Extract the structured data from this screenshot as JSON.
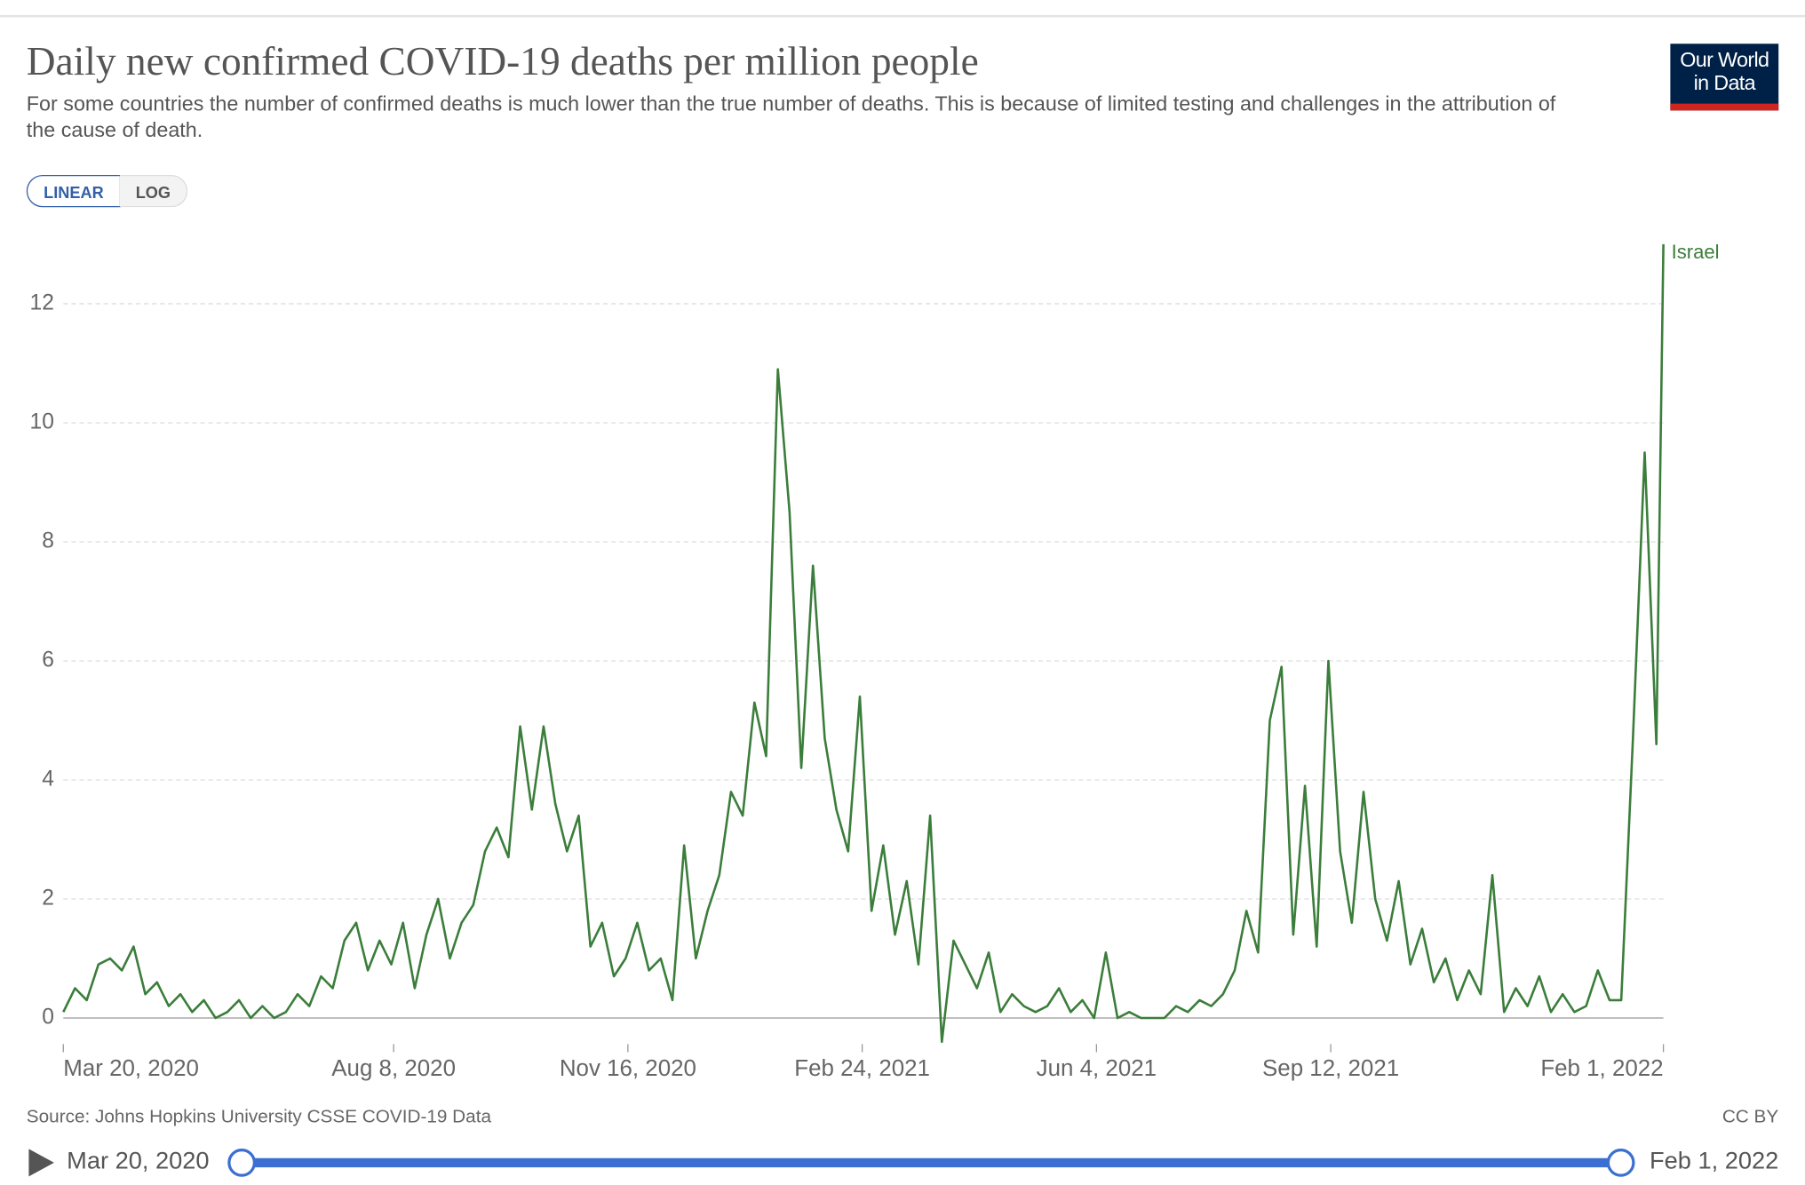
{
  "chart_data": {
    "type": "line",
    "title": "Daily new confirmed COVID-19 deaths per million people",
    "subtitle": "For some countries the number of confirmed deaths is much lower than the true number of deaths. This is because of limited testing and challenges in the attribution of the cause of death.",
    "x": [
      "2020-03-20",
      "2020-03-25",
      "2020-03-30",
      "2020-04-04",
      "2020-04-09",
      "2020-04-14",
      "2020-04-19",
      "2020-04-24",
      "2020-04-29",
      "2020-05-04",
      "2020-05-09",
      "2020-05-14",
      "2020-05-19",
      "2020-05-24",
      "2020-05-29",
      "2020-06-03",
      "2020-06-08",
      "2020-06-13",
      "2020-06-18",
      "2020-06-23",
      "2020-06-28",
      "2020-07-03",
      "2020-07-08",
      "2020-07-13",
      "2020-07-18",
      "2020-07-23",
      "2020-07-28",
      "2020-08-02",
      "2020-08-07",
      "2020-08-12",
      "2020-08-17",
      "2020-08-22",
      "2020-08-27",
      "2020-09-01",
      "2020-09-06",
      "2020-09-11",
      "2020-09-16",
      "2020-09-21",
      "2020-09-26",
      "2020-10-01",
      "2020-10-06",
      "2020-10-11",
      "2020-10-16",
      "2020-10-21",
      "2020-10-26",
      "2020-10-31",
      "2020-11-05",
      "2020-11-10",
      "2020-11-15",
      "2020-11-20",
      "2020-11-25",
      "2020-11-30",
      "2020-12-05",
      "2020-12-10",
      "2020-12-15",
      "2020-12-20",
      "2020-12-25",
      "2020-12-30",
      "2021-01-04",
      "2021-01-09",
      "2021-01-14",
      "2021-01-19",
      "2021-01-24",
      "2021-01-29",
      "2021-02-03",
      "2021-02-08",
      "2021-02-13",
      "2021-02-18",
      "2021-02-23",
      "2021-02-28",
      "2021-03-05",
      "2021-03-10",
      "2021-03-15",
      "2021-03-20",
      "2021-03-25",
      "2021-03-30",
      "2021-04-04",
      "2021-04-09",
      "2021-04-14",
      "2021-04-19",
      "2021-04-24",
      "2021-04-29",
      "2021-05-04",
      "2021-05-09",
      "2021-05-14",
      "2021-05-19",
      "2021-05-24",
      "2021-05-29",
      "2021-06-03",
      "2021-06-08",
      "2021-06-13",
      "2021-06-18",
      "2021-06-23",
      "2021-06-28",
      "2021-07-03",
      "2021-07-08",
      "2021-07-13",
      "2021-07-18",
      "2021-07-23",
      "2021-07-28",
      "2021-08-02",
      "2021-08-07",
      "2021-08-12",
      "2021-08-17",
      "2021-08-22",
      "2021-08-27",
      "2021-09-01",
      "2021-09-06",
      "2021-09-11",
      "2021-09-16",
      "2021-09-21",
      "2021-09-26",
      "2021-10-01",
      "2021-10-06",
      "2021-10-11",
      "2021-10-16",
      "2021-10-21",
      "2021-10-26",
      "2021-10-31",
      "2021-11-05",
      "2021-11-10",
      "2021-11-15",
      "2021-11-20",
      "2021-11-25",
      "2021-11-30",
      "2021-12-05",
      "2021-12-10",
      "2021-12-15",
      "2021-12-20",
      "2021-12-25",
      "2021-12-30",
      "2022-01-04",
      "2022-01-09",
      "2022-01-14",
      "2022-01-19",
      "2022-01-24",
      "2022-01-29",
      "2022-02-01"
    ],
    "series": [
      {
        "name": "Israel",
        "color": "#3b7d3b",
        "values": [
          0.1,
          0.5,
          0.3,
          0.9,
          1.0,
          0.8,
          1.2,
          0.4,
          0.6,
          0.2,
          0.4,
          0.1,
          0.3,
          0.0,
          0.1,
          0.3,
          0.0,
          0.2,
          0.0,
          0.1,
          0.4,
          0.2,
          0.7,
          0.5,
          1.3,
          1.6,
          0.8,
          1.3,
          0.9,
          1.6,
          0.5,
          1.4,
          2.0,
          1.0,
          1.6,
          1.9,
          2.8,
          3.2,
          2.7,
          4.9,
          3.5,
          4.9,
          3.6,
          2.8,
          3.4,
          1.2,
          1.6,
          0.7,
          1.0,
          1.6,
          0.8,
          1.0,
          0.3,
          2.9,
          1.0,
          1.8,
          2.4,
          3.8,
          3.4,
          5.3,
          4.4,
          10.9,
          8.5,
          4.2,
          7.6,
          4.7,
          3.5,
          2.8,
          5.4,
          1.8,
          2.9,
          1.4,
          2.3,
          0.9,
          3.4,
          -0.4,
          1.3,
          0.9,
          0.5,
          1.1,
          0.1,
          0.4,
          0.2,
          0.1,
          0.2,
          0.5,
          0.1,
          0.3,
          0.0,
          1.1,
          0.0,
          0.1,
          0.0,
          0.0,
          0.0,
          0.2,
          0.1,
          0.3,
          0.2,
          0.4,
          0.8,
          1.8,
          1.1,
          5.0,
          5.9,
          1.4,
          3.9,
          1.2,
          6.0,
          2.8,
          1.6,
          3.8,
          2.0,
          1.3,
          2.3,
          0.9,
          1.5,
          0.6,
          1.0,
          0.3,
          0.8,
          0.4,
          2.4,
          0.1,
          0.5,
          0.2,
          0.7,
          0.1,
          0.4,
          0.1,
          0.2,
          0.8,
          0.3,
          0.3,
          4.7,
          9.5,
          4.6,
          13.0
        ]
      }
    ],
    "xlim": [
      "2020-03-20",
      "2022-02-01"
    ],
    "ylim": [
      -0.4,
      13.1
    ],
    "xticks": [
      {
        "value": "2020-03-20",
        "label": "Mar 20, 2020"
      },
      {
        "value": "2020-08-08",
        "label": "Aug 8, 2020"
      },
      {
        "value": "2020-11-16",
        "label": "Nov 16, 2020"
      },
      {
        "value": "2021-02-24",
        "label": "Feb 24, 2021"
      },
      {
        "value": "2021-06-04",
        "label": "Jun 4, 2021"
      },
      {
        "value": "2021-09-12",
        "label": "Sep 12, 2021"
      },
      {
        "value": "2022-02-01",
        "label": "Feb 1, 2022"
      }
    ],
    "yticks": [
      0,
      2,
      4,
      6,
      8,
      10,
      12
    ],
    "grid": true
  },
  "header": {
    "logo": "Our World in Data"
  },
  "controls": {
    "scale_buttons": [
      "LINEAR",
      "LOG"
    ],
    "timeline_start": "Mar 20, 2020",
    "timeline_end": "Feb 1, 2022"
  },
  "footer": {
    "source": "Source: Johns Hopkins University CSSE COVID-19 Data",
    "license": "CC BY"
  }
}
